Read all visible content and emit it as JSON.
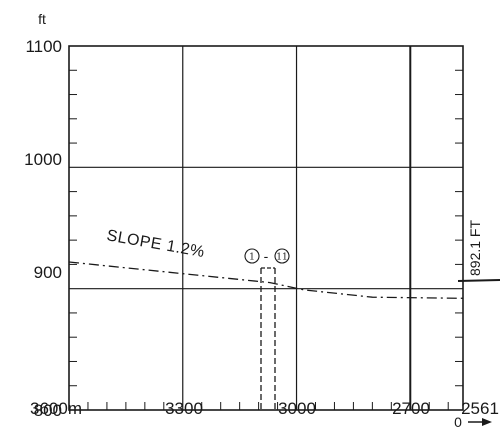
{
  "chart_data": {
    "type": "line",
    "y_unit": "ft",
    "y_ticks": [
      "800",
      "900",
      "1000",
      "1100"
    ],
    "x_ticks": [
      "3600m",
      "3300",
      "3000",
      "2700",
      "2561"
    ],
    "x_origin_label": "0",
    "xlim": [
      3600,
      2561
    ],
    "ylim": [
      800,
      1100
    ],
    "slope_label": "SLOPE 1.2%",
    "section_label_start": "1",
    "section_label_end": "11",
    "section_dash": "-",
    "elevation_label": "892.1 FT",
    "profile_x": [
      3600,
      3070,
      2980,
      2800,
      2561
    ],
    "profile_y": [
      922,
      905,
      899,
      893,
      892.1
    ],
    "grid": true
  }
}
